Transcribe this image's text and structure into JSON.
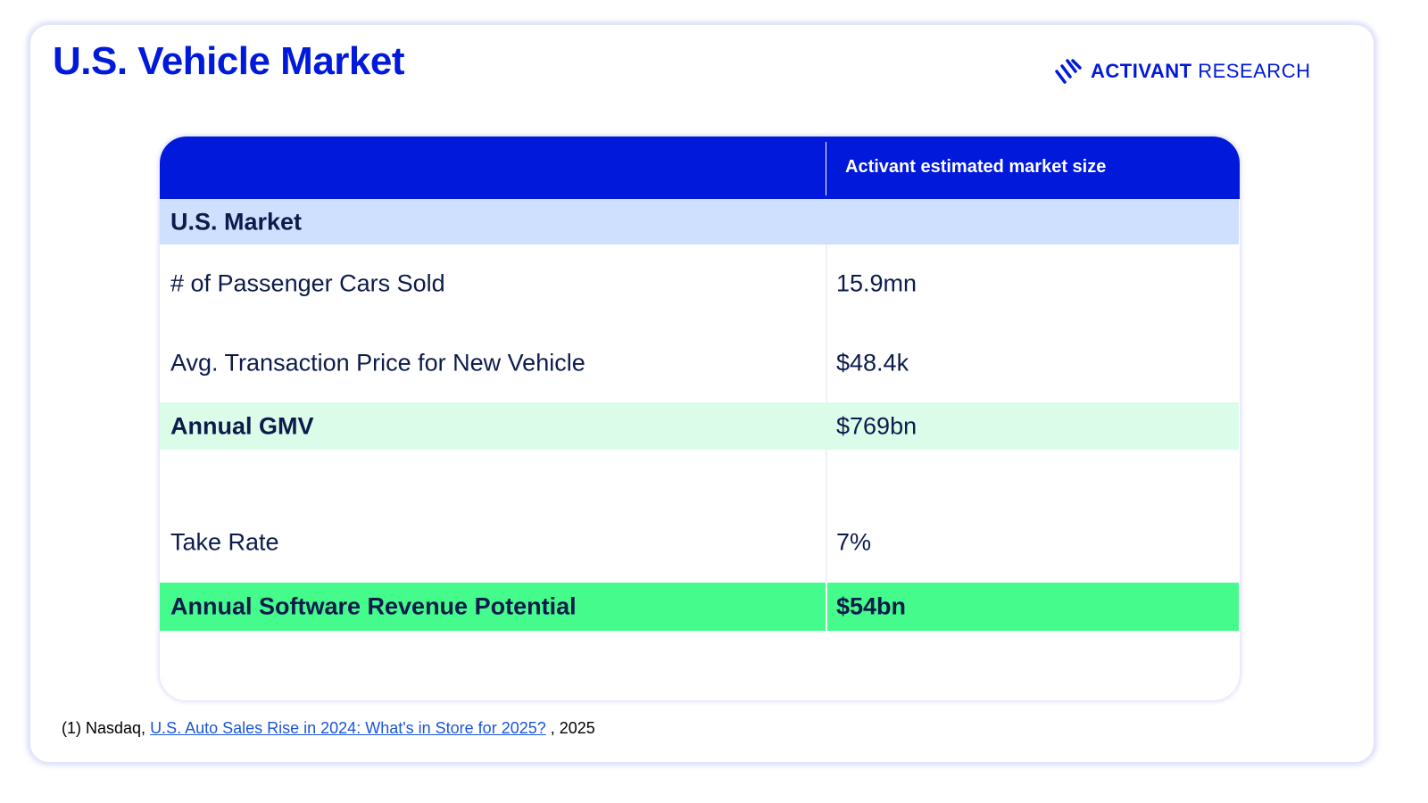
{
  "title": "U.S. Vehicle Market",
  "logo": {
    "brand": "ACTIVANT",
    "suffix": "RESEARCH"
  },
  "table": {
    "header": "Activant estimated market size",
    "section": "U.S. Market",
    "rows": [
      {
        "label": "# of Passenger Cars Sold",
        "value": "15.9mn"
      },
      {
        "label": "Avg. Transaction Price for New Vehicle",
        "value": "$48.4k"
      },
      {
        "label": "Annual GMV",
        "value": "$769bn"
      },
      {
        "label": "Take Rate",
        "value": "7%"
      },
      {
        "label": "Annual Software Revenue Potential",
        "value": "$54bn"
      }
    ]
  },
  "footnote": {
    "prefix": "(1) Nasdaq,",
    "link": "U.S. Auto Sales Rise in 2024: What's in Store for 2025?",
    "suffix": ", 2025"
  },
  "colors": {
    "brand": "#0019db",
    "section": "#cfe0ff",
    "gmv": "#dbfce8",
    "revenue": "#44fb8c"
  }
}
